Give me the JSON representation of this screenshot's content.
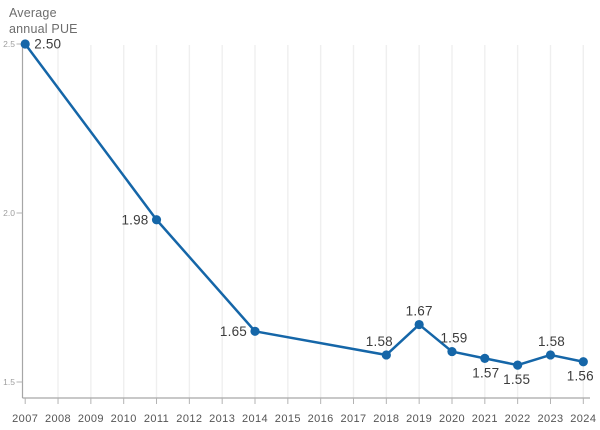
{
  "chart_data": {
    "type": "line",
    "title": "Average annual PUE",
    "series": [
      {
        "name": "Average annual PUE",
        "x": [
          2007,
          2011,
          2014,
          2018,
          2019,
          2020,
          2021,
          2022,
          2023,
          2024
        ],
        "values": [
          2.5,
          1.98,
          1.65,
          1.58,
          1.67,
          1.59,
          1.57,
          1.55,
          1.58,
          1.56
        ],
        "point_labels": [
          "2.50",
          "1.98",
          "1.65",
          "1.58",
          "1.67",
          "1.59",
          "1.57",
          "1.55",
          "1.58",
          "1.56"
        ],
        "label_placement": [
          "right",
          "left",
          "left",
          "above",
          "above",
          "above",
          "below",
          "below",
          "above",
          "below"
        ],
        "label_dx": [
          0,
          0,
          0,
          -7,
          0,
          2,
          1,
          -1,
          1,
          -3
        ]
      }
    ],
    "x_ticks": [
      "2007",
      "2008",
      "2009",
      "2010",
      "2011",
      "2012",
      "2013",
      "2014",
      "2015",
      "2016",
      "2017",
      "2018",
      "2019",
      "2020",
      "2021",
      "2022",
      "2023",
      "2024"
    ],
    "x_tick_years": [
      2007,
      2008,
      2009,
      2010,
      2011,
      2012,
      2013,
      2014,
      2015,
      2016,
      2017,
      2018,
      2019,
      2020,
      2021,
      2022,
      2023,
      2024
    ],
    "y_ticks": [
      {
        "value": 2.5,
        "label": "2.5"
      },
      {
        "value": 2.0,
        "label": "2.0"
      },
      {
        "value": 1.5,
        "label": "1.5"
      }
    ],
    "xlim": [
      2007,
      2024
    ],
    "ylim": [
      1.45,
      2.51
    ],
    "grid": "vertical-only",
    "legend": "none",
    "colors": {
      "line": "#1566a8",
      "point": "#1566a8",
      "grid": "#efefef",
      "axis": "#a6a6a6",
      "tick": "#b3b3b3",
      "x_label": "#555555",
      "y_label": "#9e9e9e",
      "point_label": "#3c3c3c",
      "title": "#6d6d6d",
      "background": "#ffffff"
    }
  }
}
